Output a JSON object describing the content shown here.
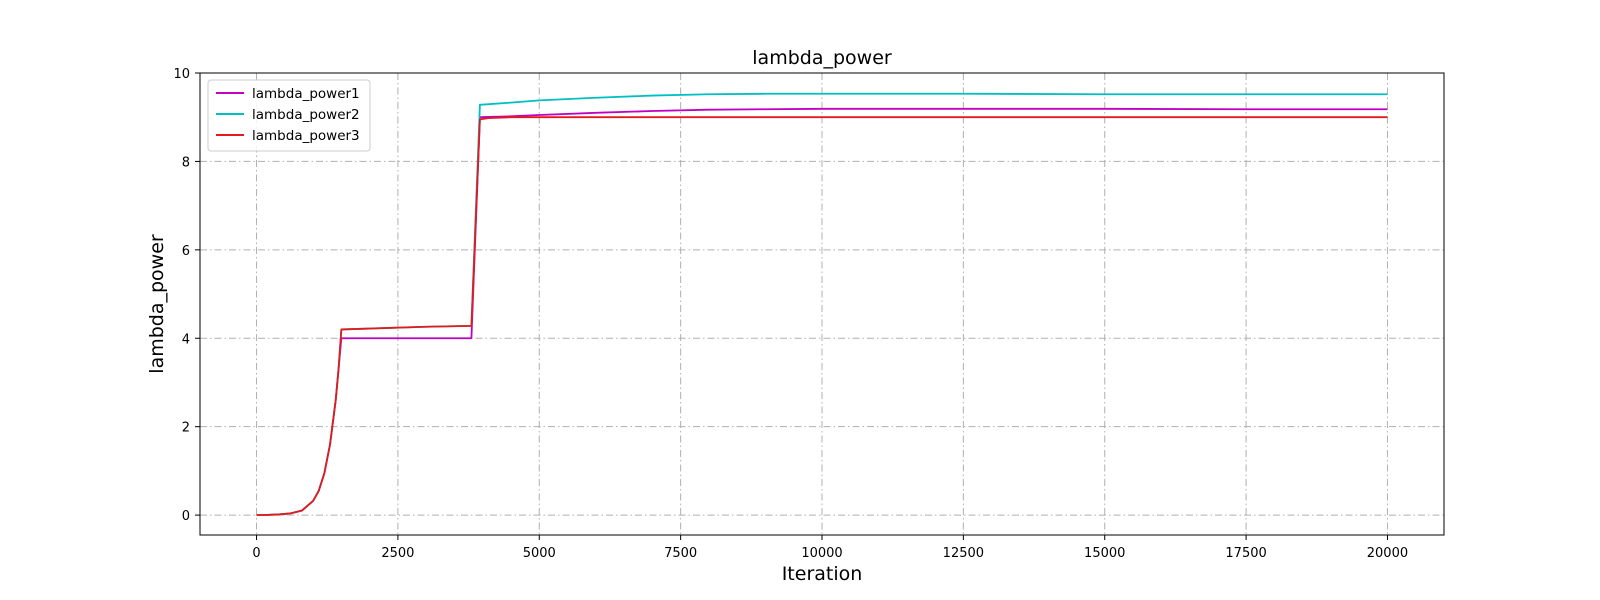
{
  "chart_data": {
    "type": "line",
    "title": "lambda_power",
    "xlabel": "Iteration",
    "ylabel": "lambda_power",
    "xlim": [
      -1000,
      21000
    ],
    "ylim": [
      -0.45,
      10
    ],
    "xticks": [
      0,
      2500,
      5000,
      7500,
      10000,
      12500,
      15000,
      17500,
      20000
    ],
    "yticks": [
      0,
      2,
      4,
      6,
      8,
      10
    ],
    "grid": true,
    "legend_position": "top-left",
    "series": [
      {
        "name": "lambda_power1",
        "color": "#c000c0",
        "points": [
          [
            0,
            0
          ],
          [
            200,
            0.005
          ],
          [
            400,
            0.015
          ],
          [
            600,
            0.04
          ],
          [
            800,
            0.1
          ],
          [
            1000,
            0.32
          ],
          [
            1100,
            0.55
          ],
          [
            1200,
            0.95
          ],
          [
            1300,
            1.6
          ],
          [
            1400,
            2.6
          ],
          [
            1450,
            3.3
          ],
          [
            1500,
            4.0
          ],
          [
            2000,
            4.0
          ],
          [
            3000,
            4.0
          ],
          [
            3800,
            4.0
          ],
          [
            3950,
            9.0
          ],
          [
            4500,
            9.02
          ],
          [
            5000,
            9.05
          ],
          [
            6000,
            9.1
          ],
          [
            7000,
            9.14
          ],
          [
            8000,
            9.17
          ],
          [
            9000,
            9.18
          ],
          [
            10000,
            9.19
          ],
          [
            12500,
            9.19
          ],
          [
            15000,
            9.19
          ],
          [
            17500,
            9.18
          ],
          [
            20000,
            9.18
          ]
        ]
      },
      {
        "name": "lambda_power2",
        "color": "#00bfc4",
        "points": [
          [
            0,
            0
          ],
          [
            200,
            0.005
          ],
          [
            400,
            0.015
          ],
          [
            600,
            0.04
          ],
          [
            800,
            0.1
          ],
          [
            1000,
            0.32
          ],
          [
            1100,
            0.55
          ],
          [
            1200,
            0.95
          ],
          [
            1300,
            1.6
          ],
          [
            1400,
            2.6
          ],
          [
            1450,
            3.3
          ],
          [
            1500,
            4.2
          ],
          [
            2000,
            4.22
          ],
          [
            3000,
            4.26
          ],
          [
            3800,
            4.28
          ],
          [
            3950,
            9.28
          ],
          [
            4500,
            9.33
          ],
          [
            5000,
            9.38
          ],
          [
            6000,
            9.44
          ],
          [
            7000,
            9.49
          ],
          [
            8000,
            9.52
          ],
          [
            9000,
            9.53
          ],
          [
            10000,
            9.53
          ],
          [
            12500,
            9.53
          ],
          [
            15000,
            9.52
          ],
          [
            17500,
            9.52
          ],
          [
            20000,
            9.52
          ]
        ]
      },
      {
        "name": "lambda_power3",
        "color": "#e31a1c",
        "points": [
          [
            0,
            0
          ],
          [
            200,
            0.005
          ],
          [
            400,
            0.015
          ],
          [
            600,
            0.04
          ],
          [
            800,
            0.1
          ],
          [
            1000,
            0.32
          ],
          [
            1100,
            0.55
          ],
          [
            1200,
            0.95
          ],
          [
            1300,
            1.6
          ],
          [
            1400,
            2.6
          ],
          [
            1450,
            3.3
          ],
          [
            1500,
            4.2
          ],
          [
            2000,
            4.22
          ],
          [
            3000,
            4.26
          ],
          [
            3800,
            4.28
          ],
          [
            3950,
            8.95
          ],
          [
            4100,
            8.98
          ],
          [
            4500,
            9.0
          ],
          [
            5000,
            9.0
          ],
          [
            10000,
            9.0
          ],
          [
            15000,
            9.0
          ],
          [
            20000,
            9.0
          ]
        ]
      }
    ]
  }
}
